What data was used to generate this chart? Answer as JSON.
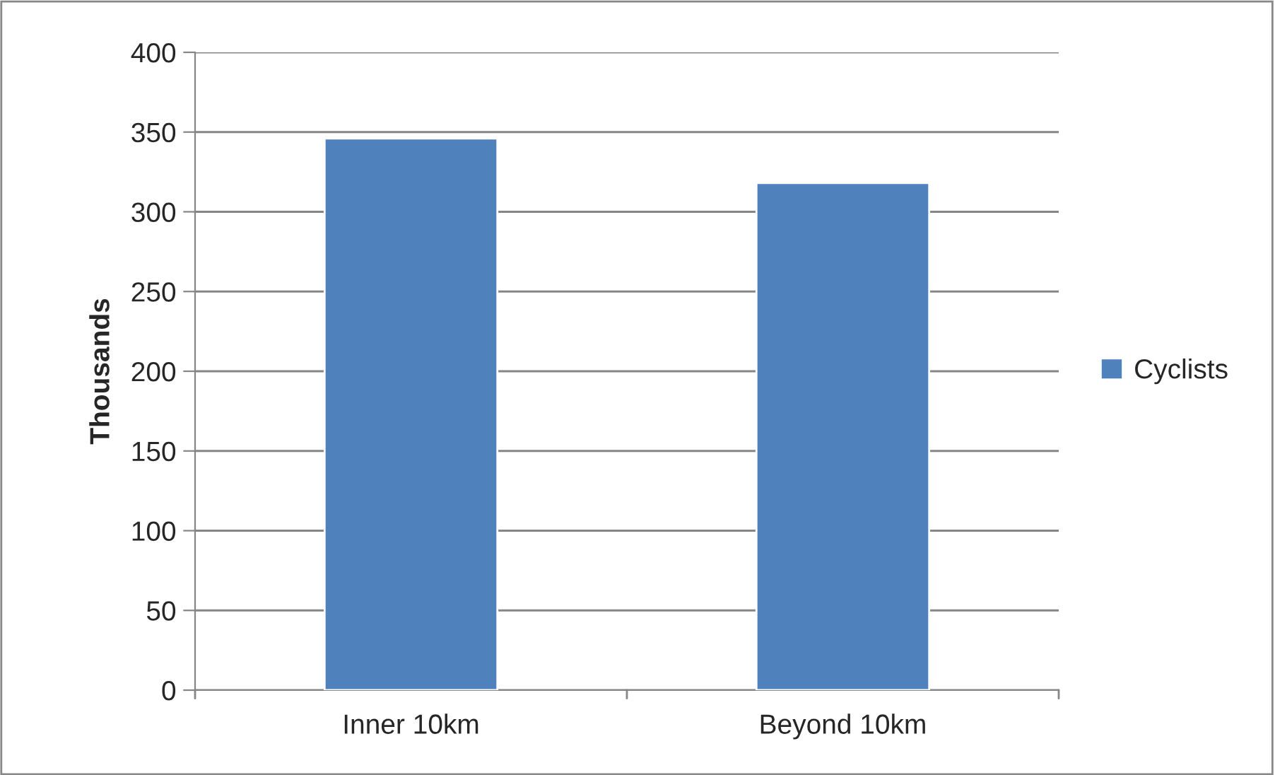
{
  "chart_data": {
    "type": "bar",
    "ylabel": "Thousands",
    "categories": [
      "Inner 10km",
      "Beyond 10km"
    ],
    "series": [
      {
        "name": "Cyclists",
        "color": "#4f81bd",
        "values": [
          346,
          318
        ]
      }
    ],
    "ylim": [
      0,
      400
    ],
    "yticks": [
      0,
      50,
      100,
      150,
      200,
      250,
      300,
      350,
      400
    ],
    "grid": "y",
    "legend": "right"
  }
}
